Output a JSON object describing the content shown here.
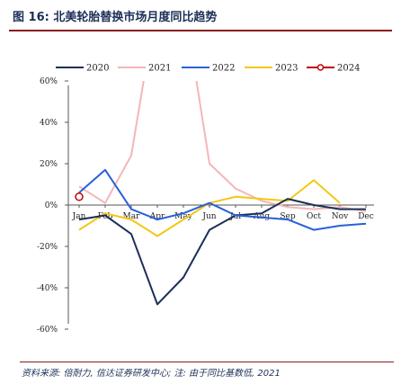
{
  "figure": {
    "title": "图 16: 北美轮胎替换市场月度同比趋势",
    "source_note": "资料来源: 倍耐力, 信达证券研发中心; 注: 由于同比基数低, 2021"
  },
  "chart_data": {
    "type": "line",
    "categories": [
      "Jan",
      "Feb",
      "Mar",
      "Apr",
      "May",
      "Jun",
      "Jul",
      "Aug",
      "Sep",
      "Oct",
      "Nov",
      "Dec"
    ],
    "ylim": [
      -60,
      60
    ],
    "yticks": [
      60,
      40,
      20,
      0,
      -20,
      -40,
      -60
    ],
    "ytick_labels": [
      "60%",
      "40%",
      "20%",
      "0%",
      "-20%",
      "-40%",
      "-60%"
    ],
    "grid": false,
    "legend_position": "top",
    "series": [
      {
        "name": "2020",
        "color": "#1c2f57",
        "values": [
          -7,
          -5,
          -14,
          -48,
          -35,
          -12,
          -5,
          -4,
          3,
          0,
          -2,
          -2
        ]
      },
      {
        "name": "2021",
        "color": "#f4b6b9",
        "values": [
          9,
          1,
          24,
          100,
          100,
          20,
          8,
          2,
          -1,
          -2,
          -1,
          -3
        ]
      },
      {
        "name": "2022",
        "color": "#2960d8",
        "values": [
          6,
          17,
          -2,
          -7,
          -4,
          1,
          -5,
          -6,
          -7,
          -12,
          -10,
          -9
        ]
      },
      {
        "name": "2023",
        "color": "#f4c714",
        "values": [
          -12,
          -4,
          -7,
          -15,
          -7,
          1,
          4,
          3,
          2,
          12,
          1,
          null
        ]
      },
      {
        "name": "2024",
        "color": "#c00000",
        "values": [
          4,
          null,
          null,
          null,
          null,
          null,
          null,
          null,
          null,
          null,
          null,
          null
        ]
      }
    ]
  }
}
